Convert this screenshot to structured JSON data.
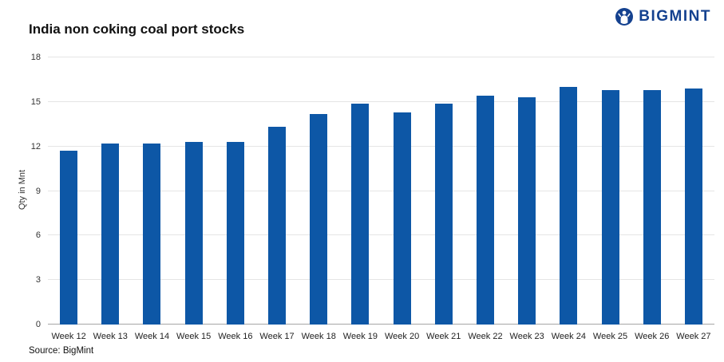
{
  "header": {
    "title": "India non coking coal port stocks",
    "logo_text": "BIGMINT"
  },
  "footer": {
    "source": "Source: BigMint"
  },
  "colors": {
    "bar": "#0d57a6",
    "brand": "#14418f",
    "grid": "#e5e5e5",
    "axis": "#a6a6a6"
  },
  "chart_data": {
    "type": "bar",
    "title": "India non coking coal port stocks",
    "categories": [
      "Week 12",
      "Week 13",
      "Week 14",
      "Week 15",
      "Week 16",
      "Week 17",
      "Week 18",
      "Week 19",
      "Week 20",
      "Week 21",
      "Week 22",
      "Week 23",
      "Week 24",
      "Week 25",
      "Week 26",
      "Week 27"
    ],
    "values": [
      11.7,
      12.2,
      12.2,
      12.3,
      12.3,
      13.3,
      14.2,
      14.9,
      14.3,
      14.9,
      15.4,
      15.3,
      16.0,
      15.8,
      15.8,
      15.9
    ],
    "xlabel": "",
    "ylabel": "Qty in Mnt",
    "ylim": [
      0,
      18
    ],
    "yticks": [
      0,
      3,
      6,
      9,
      12,
      15,
      18
    ],
    "grid": true,
    "legend": false,
    "bar_color": "#0d57a6"
  }
}
